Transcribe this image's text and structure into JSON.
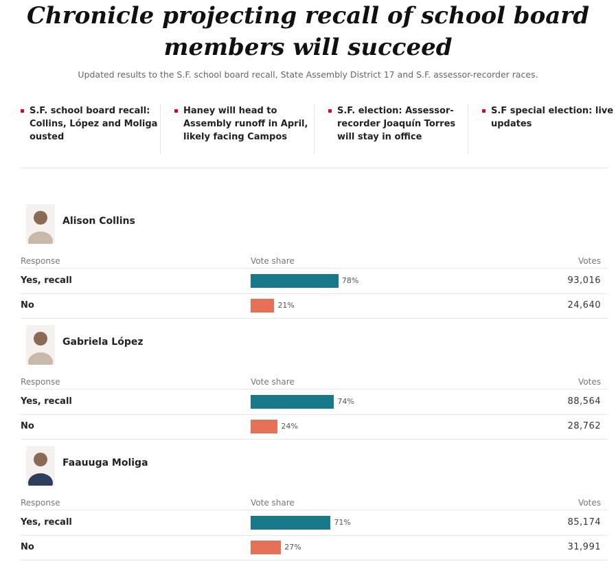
{
  "header": {
    "title": "Chronicle projecting recall of school board members will succeed",
    "subtitle": "Updated results to the S.F. school board recall, State Assembly District 17 and S.F. assessor-recorder races."
  },
  "links": [
    "S.F. school board recall: Collins, López and Moliga ousted",
    "Haney will head to Assembly runoff in April, likely facing Campos",
    "S.F. election: Assessor-recorder Joaquín Torres will stay in office",
    "S.F special election: live updates"
  ],
  "candidates": [
    {
      "name": "Alison Collins",
      "columns": [
        "Response",
        "Vote share",
        "Votes"
      ],
      "rows": [
        {
          "response": "Yes, recall",
          "share": {
            "value": 78,
            "label": "78%"
          },
          "votes": "93,016"
        },
        {
          "response": "No",
          "share": {
            "value": 21,
            "label": "21%"
          },
          "votes": "24,640"
        }
      ]
    },
    {
      "name": "Gabriela López",
      "columns": [
        "Response",
        "Vote share",
        "Votes"
      ],
      "rows": [
        {
          "response": "Yes, recall",
          "share": {
            "value": 74,
            "label": "74%"
          },
          "votes": "88,564"
        },
        {
          "response": "No",
          "share": {
            "value": 24,
            "label": "24%"
          },
          "votes": "28,762"
        }
      ]
    },
    {
      "name": "Faauuga Moliga",
      "columns": [
        "Response",
        "Vote share",
        "Votes"
      ],
      "rows": [
        {
          "response": "Yes, recall",
          "share": {
            "value": 71,
            "label": "71%"
          },
          "votes": "85,174"
        },
        {
          "response": "No",
          "share": {
            "value": 27,
            "label": "27%"
          },
          "votes": "31,991"
        }
      ]
    }
  ]
}
